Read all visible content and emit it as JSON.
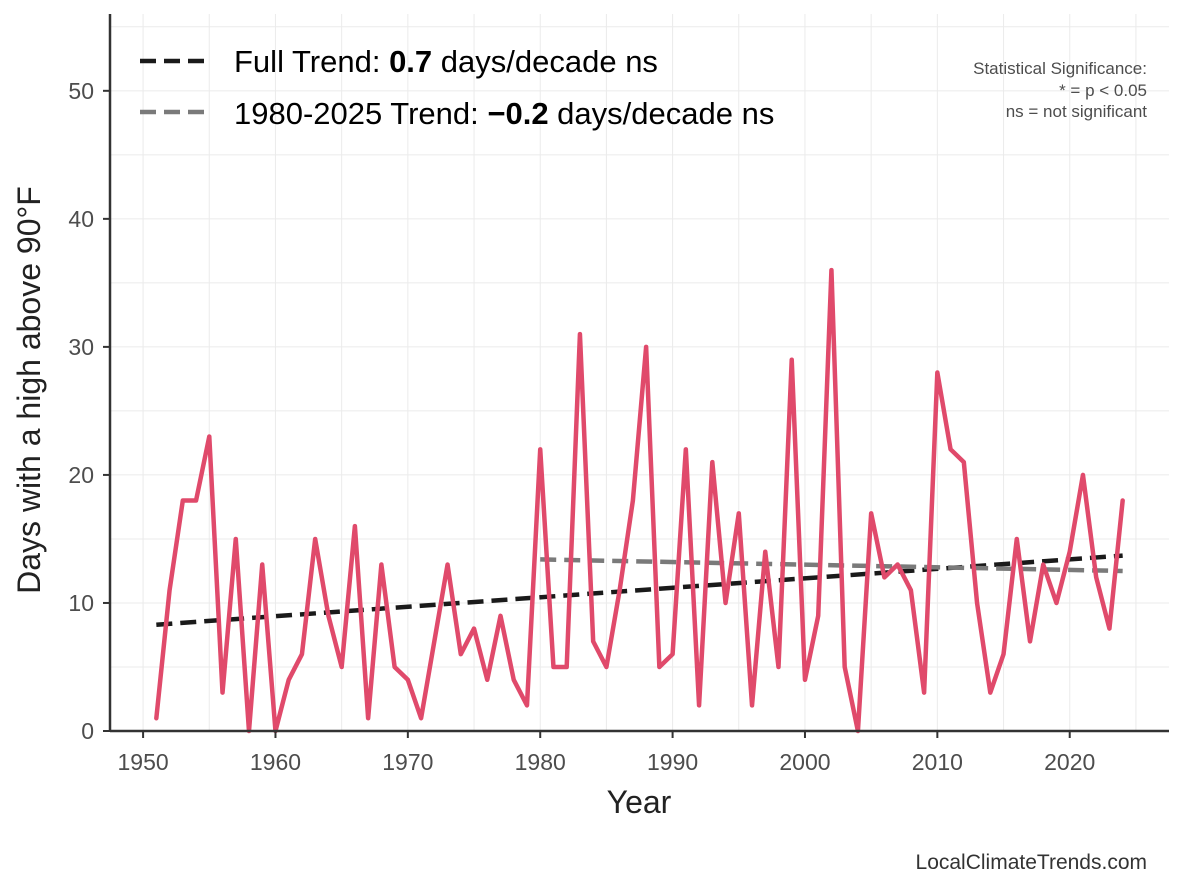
{
  "chart_data": {
    "type": "line",
    "xlabel": "Year",
    "ylabel": "Days with a high above 90°F",
    "xlim": [
      1947.5,
      2027.5
    ],
    "ylim": [
      0,
      56
    ],
    "x_ticks": [
      1950,
      1960,
      1970,
      1980,
      1990,
      2000,
      2010,
      2020
    ],
    "y_ticks": [
      0,
      10,
      20,
      30,
      40,
      50
    ],
    "grid": true,
    "series": [
      {
        "name": "Days with a high above 90°F",
        "color": "#e04a6b",
        "x": [
          1951,
          1952,
          1953,
          1954,
          1955,
          1956,
          1957,
          1958,
          1959,
          1960,
          1961,
          1962,
          1963,
          1964,
          1965,
          1966,
          1967,
          1968,
          1969,
          1970,
          1971,
          1972,
          1973,
          1974,
          1975,
          1976,
          1977,
          1978,
          1979,
          1980,
          1981,
          1982,
          1983,
          1984,
          1985,
          1986,
          1987,
          1988,
          1989,
          1990,
          1991,
          1992,
          1993,
          1994,
          1995,
          1996,
          1997,
          1998,
          1999,
          2000,
          2001,
          2002,
          2003,
          2004,
          2005,
          2006,
          2007,
          2008,
          2009,
          2010,
          2011,
          2012,
          2013,
          2014,
          2015,
          2016,
          2017,
          2018,
          2019,
          2020,
          2021,
          2022,
          2023,
          2024
        ],
        "values": [
          1,
          11,
          18,
          18,
          23,
          3,
          15,
          0,
          13,
          0,
          4,
          6,
          15,
          9,
          5,
          16,
          1,
          13,
          5,
          4,
          1,
          7,
          13,
          6,
          8,
          4,
          9,
          4,
          2,
          22,
          5,
          5,
          31,
          7,
          5,
          11,
          18,
          30,
          5,
          6,
          22,
          2,
          21,
          10,
          17,
          2,
          14,
          5,
          29,
          4,
          9,
          36,
          5,
          0,
          17,
          12,
          13,
          11,
          3,
          28,
          22,
          21,
          10,
          3,
          6,
          15,
          7,
          13,
          10,
          14,
          20,
          12,
          8,
          18
        ]
      }
    ],
    "trends": [
      {
        "name": "Full Trend",
        "color": "#1a1a1a",
        "x": [
          1951,
          2024
        ],
        "values": [
          8.3,
          13.7
        ],
        "legend_prefix": "Full Trend: ",
        "legend_value": "0.7",
        "legend_suffix": " days/decade ns"
      },
      {
        "name": "1980-2025 Trend",
        "color": "#7a7a7a",
        "x": [
          1980,
          2024
        ],
        "values": [
          13.4,
          12.5
        ],
        "legend_prefix": "1980-2025 Trend: ",
        "legend_value": "−0.2",
        "legend_suffix": " days/decade ns"
      }
    ],
    "annotations": {
      "significance_title": "Statistical Significance:",
      "significance_line1": "* = p < 0.05",
      "significance_line2": "ns = not significant"
    },
    "credit": "LocalClimateTrends.com"
  }
}
